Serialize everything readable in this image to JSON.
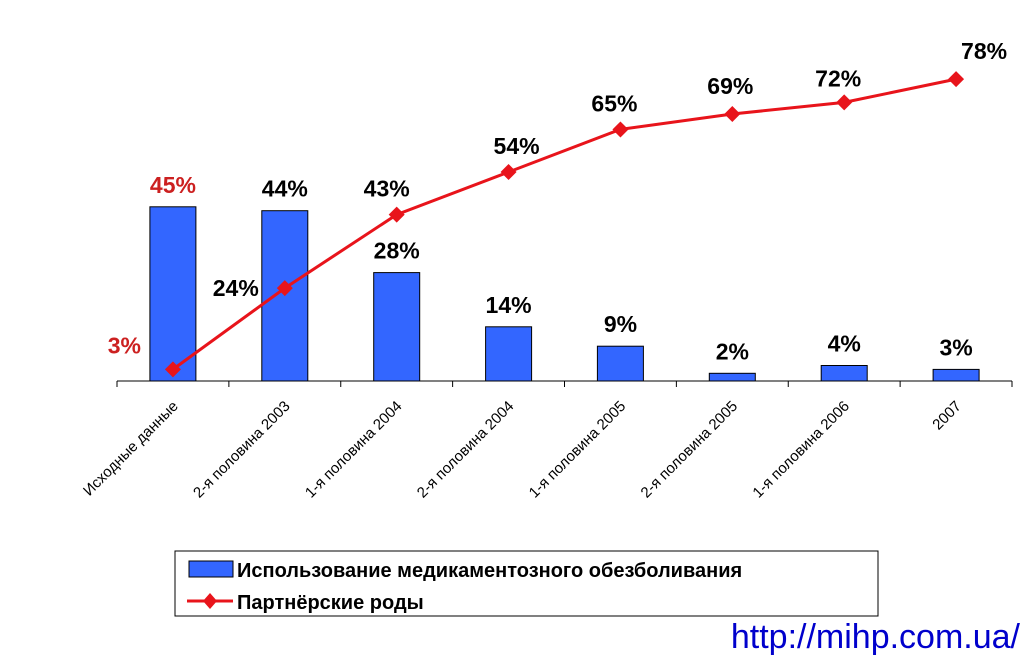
{
  "chart_data": {
    "type": "bar",
    "categories": [
      "Исходные данные",
      "2-я половина 2003",
      "1-я половина 2004",
      "2-я половина 2004",
      "1-я половина 2005",
      "2-я половина 2005",
      "1-я половина 2006",
      "2007"
    ],
    "series": [
      {
        "name": "Использование медикаментозного обезболивания",
        "type": "bar",
        "color": "#3366ff",
        "values": [
          45,
          44,
          28,
          14,
          9,
          2,
          4,
          3
        ],
        "labels": [
          "45%",
          "44%",
          "28%",
          "14%",
          "9%",
          "2%",
          "4%",
          "3%"
        ]
      },
      {
        "name": "Партнёрские роды",
        "type": "line",
        "marker": "diamond",
        "color": "#e8141b",
        "values": [
          3,
          24,
          43,
          54,
          65,
          69,
          72,
          78
        ],
        "labels": [
          "3%",
          "24%",
          "43%",
          "54%",
          "65%",
          "69%",
          "72%",
          "78%"
        ]
      }
    ],
    "highlight_label_color": "#cc2020",
    "ylim": [
      0,
      80
    ],
    "grid": false,
    "legend": "bottom"
  },
  "source": "http://mihp.com.ua/"
}
